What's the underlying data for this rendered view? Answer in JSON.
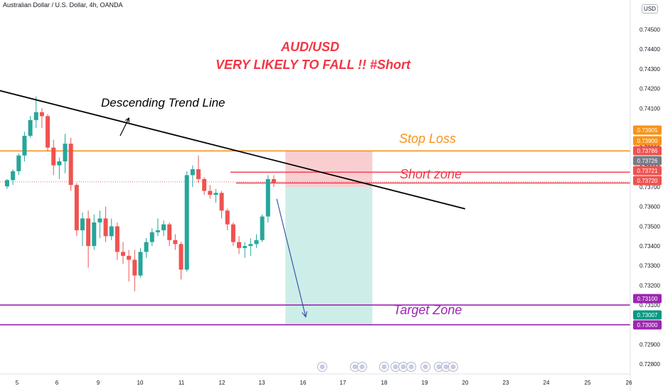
{
  "header": {
    "symbol_line": "Australian Dollar / U.S. Dollar, 4h, OANDA",
    "currency_badge": "USD"
  },
  "annotations": {
    "title_line1": "AUD/USD",
    "title_line2": "VERY LIKELY TO FALL !! #Short",
    "trend_label": "Descending Trend Line",
    "stop_loss": "Stop Loss",
    "short_zone": "Short zone",
    "target_zone": "Target Zone"
  },
  "colors": {
    "up": "#26a69a",
    "down": "#ef5350",
    "title": "#f23645",
    "stop": "#f7931a",
    "short_line": "#f23645",
    "target": "#9c27b0",
    "trend": "#000000",
    "arrow": "#2a4ea1",
    "risk_fill": "#f8c9cc",
    "reward_fill": "#c8ebe6",
    "axis_text": "#131722"
  },
  "chart_data": {
    "type": "candlestick",
    "title": "Australian Dollar / U.S. Dollar, 4h, OANDA",
    "ylim": [
      0.7275,
      0.7465
    ],
    "y_ticks": [
      "0.74500",
      "0.74400",
      "0.74300",
      "0.74200",
      "0.74100",
      "0.74000",
      "0.73900",
      "0.73800",
      "0.73700",
      "0.73600",
      "0.73500",
      "0.73400",
      "0.73300",
      "0.73200",
      "0.73100",
      "0.73000",
      "0.72900",
      "0.72800"
    ],
    "x_ticks": [
      "5",
      "6",
      "9",
      "10",
      "11",
      "12",
      "13",
      "16",
      "17",
      "18",
      "19",
      "20",
      "23",
      "24",
      "25",
      "26"
    ],
    "candles": [
      [
        0.73703,
        0.7374,
        0.7369,
        0.73735
      ],
      [
        0.73735,
        0.7379,
        0.7371,
        0.7378
      ],
      [
        0.7378,
        0.7387,
        0.7376,
        0.7386
      ],
      [
        0.7386,
        0.7398,
        0.7383,
        0.7396
      ],
      [
        0.7396,
        0.7406,
        0.7395,
        0.7404
      ],
      [
        0.7404,
        0.7416,
        0.74,
        0.7408
      ],
      [
        0.7408,
        0.741,
        0.74,
        0.7406
      ],
      [
        0.7406,
        0.7407,
        0.7388,
        0.739
      ],
      [
        0.739,
        0.7394,
        0.7376,
        0.7381
      ],
      [
        0.7381,
        0.7385,
        0.7374,
        0.7383
      ],
      [
        0.7383,
        0.7397,
        0.7377,
        0.7392
      ],
      [
        0.7392,
        0.7395,
        0.7368,
        0.7371
      ],
      [
        0.7371,
        0.7372,
        0.7345,
        0.7348
      ],
      [
        0.7348,
        0.7357,
        0.734,
        0.7354
      ],
      [
        0.7354,
        0.7358,
        0.7329,
        0.734
      ],
      [
        0.734,
        0.7356,
        0.7338,
        0.7352
      ],
      [
        0.7352,
        0.7358,
        0.7344,
        0.7354
      ],
      [
        0.7354,
        0.736,
        0.7342,
        0.7345
      ],
      [
        0.7345,
        0.7354,
        0.7343,
        0.735
      ],
      [
        0.735,
        0.7352,
        0.7333,
        0.7337
      ],
      [
        0.7337,
        0.7342,
        0.7331,
        0.7335
      ],
      [
        0.7335,
        0.7338,
        0.7322,
        0.7333
      ],
      [
        0.7333,
        0.7338,
        0.7317,
        0.7325
      ],
      [
        0.7325,
        0.7339,
        0.7324,
        0.7337
      ],
      [
        0.7337,
        0.7344,
        0.7334,
        0.7342
      ],
      [
        0.7342,
        0.7349,
        0.734,
        0.7347
      ],
      [
        0.7347,
        0.7354,
        0.7345,
        0.7348
      ],
      [
        0.7348,
        0.7353,
        0.7345,
        0.7351
      ],
      [
        0.7351,
        0.7352,
        0.734,
        0.7343
      ],
      [
        0.7343,
        0.7346,
        0.7338,
        0.7341
      ],
      [
        0.7341,
        0.7342,
        0.7323,
        0.7328
      ],
      [
        0.7328,
        0.7378,
        0.7327,
        0.7376
      ],
      [
        0.7376,
        0.7381,
        0.737,
        0.7379
      ],
      [
        0.7379,
        0.7386,
        0.7372,
        0.7374
      ],
      [
        0.7374,
        0.7375,
        0.7366,
        0.7368
      ],
      [
        0.7368,
        0.7371,
        0.7364,
        0.7366
      ],
      [
        0.7366,
        0.7369,
        0.7362,
        0.7367
      ],
      [
        0.7367,
        0.7368,
        0.7354,
        0.7358
      ],
      [
        0.7358,
        0.7359,
        0.7348,
        0.7351
      ],
      [
        0.7351,
        0.7352,
        0.734,
        0.7342
      ],
      [
        0.7342,
        0.7345,
        0.7336,
        0.7339
      ],
      [
        0.7339,
        0.7342,
        0.7334,
        0.734
      ],
      [
        0.734,
        0.7344,
        0.7335,
        0.7341
      ],
      [
        0.7341,
        0.7346,
        0.7339,
        0.7343
      ],
      [
        0.7343,
        0.7356,
        0.7342,
        0.7355
      ],
      [
        0.7355,
        0.7376,
        0.7352,
        0.7374
      ],
      [
        0.7374,
        0.7376,
        0.737,
        0.7372
      ]
    ],
    "levels": [
      {
        "name": "Stop Loss",
        "value": 0.73883
      },
      {
        "name": "Short zone",
        "value": 0.73775
      },
      {
        "name": "Short zone",
        "value": 0.7372
      },
      {
        "name": "Target Zone",
        "value": 0.731
      },
      {
        "name": "Target Zone",
        "value": 0.73
      }
    ],
    "price_labels": [
      {
        "text": "0.73905",
        "kind": "stop"
      },
      {
        "text": "0.73900",
        "kind": "stop"
      },
      {
        "text": "0.73786",
        "kind": "red"
      },
      {
        "text": "0.73726",
        "kind": "gray"
      },
      {
        "text": "0.73721",
        "kind": "red"
      },
      {
        "text": "0.73720",
        "kind": "red"
      },
      {
        "text": "0.73100",
        "kind": "target"
      },
      {
        "text": "0.73007",
        "kind": "teal"
      },
      {
        "text": "0.73000",
        "kind": "target"
      }
    ],
    "trend_line": {
      "from_index": -8,
      "from_price": 0.7424,
      "to_index": 79,
      "to_price": 0.73589
    },
    "position": {
      "entry": 0.737,
      "stop": 0.73883,
      "target": 0.73,
      "from_index": 48,
      "to_index": 63
    },
    "projection_arrow": {
      "from_index": 46.5,
      "from_price": 0.7364,
      "to_index": 51.5,
      "to_price": 0.7304
    },
    "small_arrow": {
      "from_index": 19.5,
      "from_price": 0.7396,
      "to_index": 21,
      "to_price": 0.7405
    }
  }
}
